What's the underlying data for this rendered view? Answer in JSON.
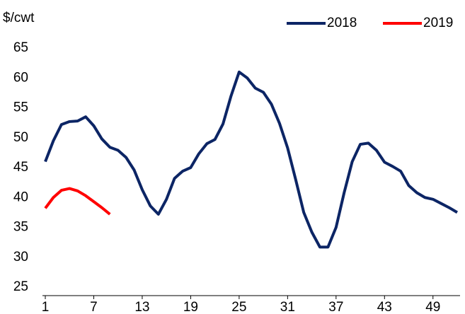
{
  "chart_data": {
    "type": "line",
    "y_axis_label": "$/cwt",
    "x": [
      1,
      2,
      3,
      4,
      5,
      6,
      7,
      8,
      9,
      10,
      11,
      12,
      13,
      14,
      15,
      16,
      17,
      18,
      19,
      20,
      21,
      22,
      23,
      24,
      25,
      26,
      27,
      28,
      29,
      30,
      31,
      32,
      33,
      34,
      35,
      36,
      37,
      38,
      39,
      40,
      41,
      42,
      43,
      44,
      45,
      46,
      47,
      48,
      49,
      50,
      51,
      52
    ],
    "series": [
      {
        "name": "2018",
        "color": "#0c2565",
        "values": [
          46,
          49.5,
          52.2,
          52.7,
          52.8,
          53.5,
          52,
          49.8,
          48.4,
          47.9,
          46.7,
          44.6,
          41.3,
          38.6,
          37.2,
          39.7,
          43.2,
          44.4,
          45,
          47.3,
          49,
          49.7,
          52.3,
          57,
          61,
          60,
          58.3,
          57.6,
          55.6,
          52.4,
          48.3,
          43,
          37.5,
          34.2,
          31.7,
          31.7,
          35,
          40.8,
          46,
          48.9,
          49.1,
          47.9,
          45.9,
          45.2,
          44.4,
          42,
          40.8,
          40,
          39.7,
          39,
          38.3,
          37.5
        ]
      },
      {
        "name": "2019",
        "color": "#ff0000",
        "values": [
          38.2,
          40,
          41.2,
          41.5,
          41.1,
          40.3,
          39.3,
          38.3,
          37.2,
          null,
          null,
          null,
          null,
          null,
          null,
          null,
          null,
          null,
          null,
          null,
          null,
          null,
          null,
          null,
          null,
          null,
          null,
          null,
          null,
          null,
          null,
          null,
          null,
          null,
          null,
          null,
          null,
          null,
          null,
          null,
          null,
          null,
          null,
          null,
          null,
          null,
          null,
          null,
          null,
          null,
          null,
          null
        ]
      }
    ],
    "xlim": [
      1,
      52
    ],
    "xticks": [
      1,
      7,
      13,
      19,
      25,
      31,
      37,
      43,
      49
    ],
    "ylim": [
      25,
      65
    ],
    "yticks": [
      25,
      30,
      35,
      40,
      45,
      50,
      55,
      60,
      65
    ],
    "legend": "top-right"
  }
}
